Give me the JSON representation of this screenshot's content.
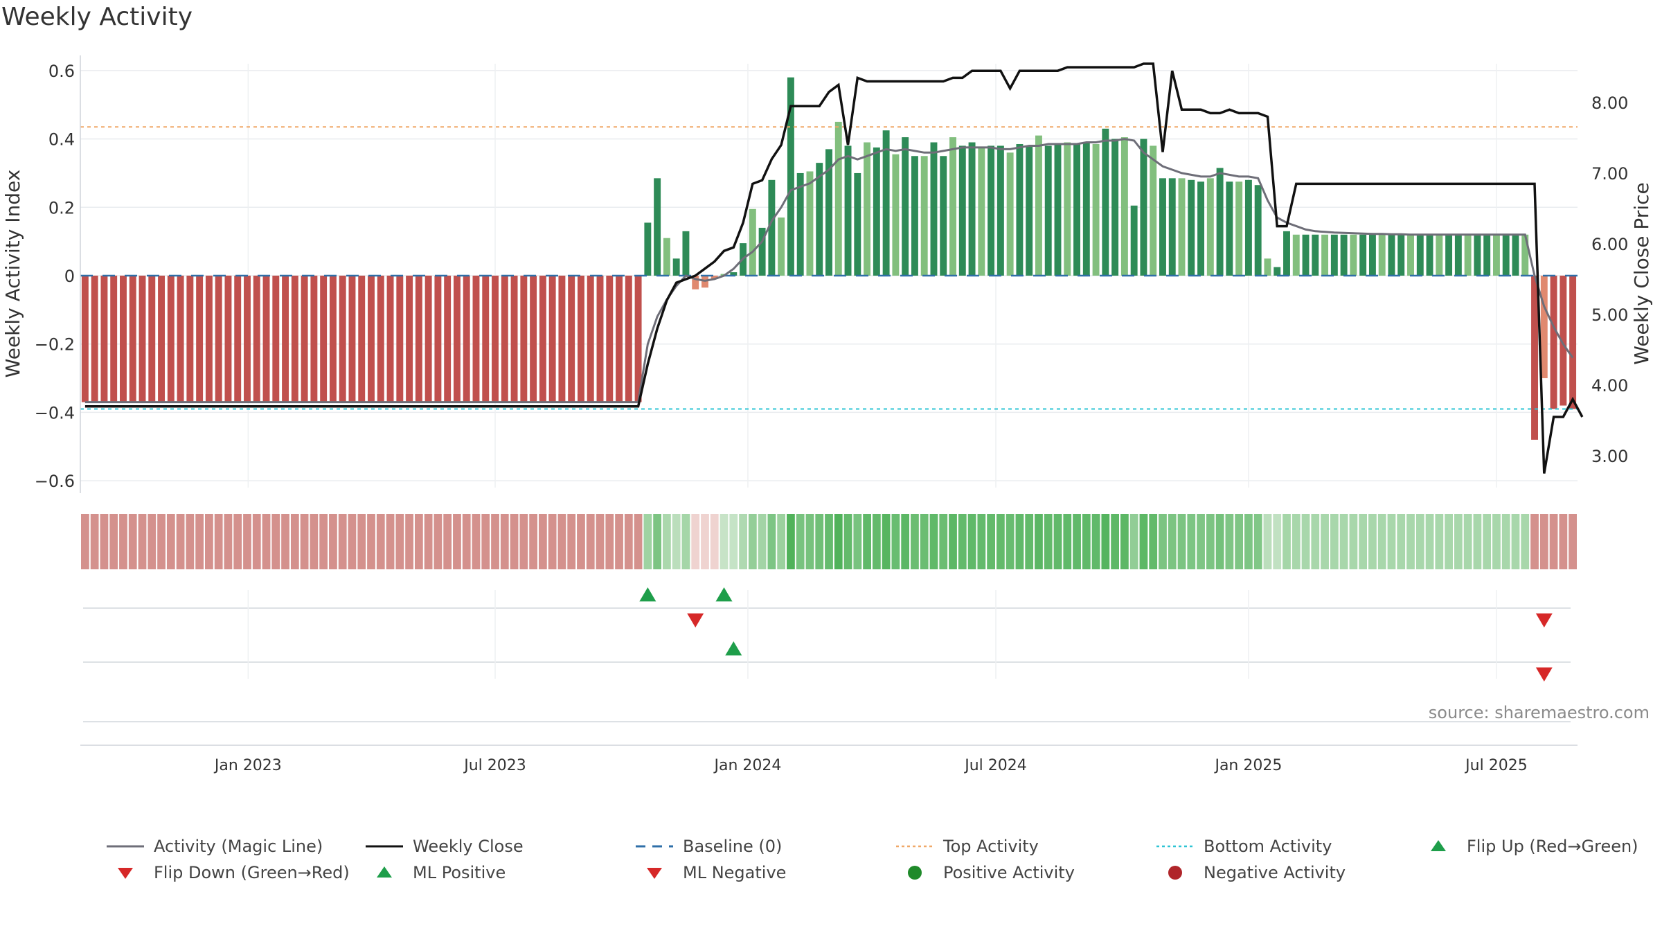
{
  "title": "Weekly Activity",
  "source": "source: sharemaestro.com",
  "colors": {
    "negative_bar": "#c0504d",
    "positive_dark": "#2e8b57",
    "positive_light": "#82bf7e",
    "negative_light": "#e0896f",
    "magic_line": "#6e6e78",
    "close_line": "#111111",
    "baseline": "#2f6fa8",
    "top_activity": "#f0a868",
    "bottom_activity": "#2ec4d4",
    "flip_up": "#1e9e4a",
    "flip_down": "#d62828"
  },
  "chart_data": {
    "type": "bar",
    "title": "Weekly Activity",
    "ylabel": "Weekly Activity Index",
    "y2label": "Weekly Close Price",
    "ylim": [
      -0.62,
      0.62
    ],
    "y2lim": [
      2.55,
      8.55
    ],
    "yticks": [
      -0.6,
      -0.4,
      -0.2,
      0,
      0.2,
      0.4,
      0.6
    ],
    "yticklabels": [
      "−0.6",
      "−0.4",
      "−0.2",
      "0",
      "0.2",
      "0.4",
      "0.6"
    ],
    "y2ticks": [
      3,
      4,
      5,
      6,
      7,
      8
    ],
    "y2ticklabels": [
      "3.00",
      "4.00",
      "5.00",
      "6.00",
      "7.00",
      "8.00"
    ],
    "xticklabels": [
      "Jan 2023",
      "Jul 2023",
      "Jan 2024",
      "Jul 2024",
      "Jan 2025",
      "Jul 2025"
    ],
    "xtick_weeks": [
      17.6,
      43.5,
      70,
      96,
      122.5,
      148.5
    ],
    "grid": true,
    "legend_position": "bottom",
    "series": [
      {
        "name": "Weekly Activity Index (bars)",
        "values": [
          -0.37,
          -0.37,
          -0.37,
          -0.37,
          -0.37,
          -0.37,
          -0.37,
          -0.37,
          -0.37,
          -0.37,
          -0.37,
          -0.37,
          -0.37,
          -0.37,
          -0.37,
          -0.37,
          -0.37,
          -0.37,
          -0.37,
          -0.37,
          -0.37,
          -0.37,
          -0.37,
          -0.37,
          -0.37,
          -0.37,
          -0.37,
          -0.37,
          -0.37,
          -0.37,
          -0.37,
          -0.37,
          -0.37,
          -0.37,
          -0.37,
          -0.37,
          -0.37,
          -0.37,
          -0.37,
          -0.37,
          -0.37,
          -0.37,
          -0.37,
          -0.37,
          -0.37,
          -0.37,
          -0.37,
          -0.37,
          -0.37,
          -0.37,
          -0.37,
          -0.37,
          -0.37,
          -0.37,
          -0.37,
          -0.37,
          -0.37,
          -0.37,
          -0.37,
          0.155,
          0.285,
          0.11,
          0.05,
          0.13,
          -0.04,
          -0.035,
          -0.01,
          0.005,
          0.01,
          0.095,
          0.195,
          0.14,
          0.28,
          0.17,
          0.58,
          0.3,
          0.305,
          0.33,
          0.37,
          0.45,
          0.38,
          0.3,
          0.39,
          0.375,
          0.425,
          0.355,
          0.405,
          0.35,
          0.35,
          0.39,
          0.35,
          0.405,
          0.38,
          0.39,
          0.375,
          0.38,
          0.38,
          0.36,
          0.385,
          0.38,
          0.41,
          0.38,
          0.385,
          0.39,
          0.385,
          0.39,
          0.385,
          0.43,
          0.4,
          0.405,
          0.205,
          0.4,
          0.38,
          0.285,
          0.285,
          0.285,
          0.28,
          0.275,
          0.285,
          0.315,
          0.275,
          0.275,
          0.28,
          0.265,
          0.05,
          0.025,
          0.13,
          0.12,
          0.12,
          0.12,
          0.12,
          0.12,
          0.12,
          0.12,
          0.12,
          0.12,
          0.12,
          0.12,
          0.12,
          0.12,
          0.12,
          0.12,
          0.12,
          0.12,
          0.12,
          0.12,
          0.12,
          0.12,
          0.12,
          0.12,
          0.12,
          0.12,
          -0.48,
          -0.3,
          -0.39,
          -0.38,
          -0.39
        ]
      },
      {
        "name": "Activity (Magic Line)",
        "values": [
          -0.37,
          -0.37,
          -0.37,
          -0.37,
          -0.37,
          -0.37,
          -0.37,
          -0.37,
          -0.37,
          -0.37,
          -0.37,
          -0.37,
          -0.37,
          -0.37,
          -0.37,
          -0.37,
          -0.37,
          -0.37,
          -0.37,
          -0.37,
          -0.37,
          -0.37,
          -0.37,
          -0.37,
          -0.37,
          -0.37,
          -0.37,
          -0.37,
          -0.37,
          -0.37,
          -0.37,
          -0.37,
          -0.37,
          -0.37,
          -0.37,
          -0.37,
          -0.37,
          -0.37,
          -0.37,
          -0.37,
          -0.37,
          -0.37,
          -0.37,
          -0.37,
          -0.37,
          -0.37,
          -0.37,
          -0.37,
          -0.37,
          -0.37,
          -0.37,
          -0.37,
          -0.37,
          -0.37,
          -0.37,
          -0.37,
          -0.37,
          -0.37,
          -0.37,
          -0.2,
          -0.12,
          -0.07,
          -0.03,
          0.0,
          -0.01,
          -0.015,
          -0.01,
          0.0,
          0.02,
          0.05,
          0.07,
          0.1,
          0.16,
          0.2,
          0.25,
          0.26,
          0.27,
          0.29,
          0.31,
          0.34,
          0.35,
          0.34,
          0.35,
          0.36,
          0.37,
          0.365,
          0.37,
          0.365,
          0.36,
          0.36,
          0.365,
          0.37,
          0.375,
          0.375,
          0.375,
          0.375,
          0.37,
          0.37,
          0.375,
          0.38,
          0.38,
          0.385,
          0.385,
          0.385,
          0.385,
          0.39,
          0.39,
          0.395,
          0.395,
          0.4,
          0.395,
          0.36,
          0.34,
          0.32,
          0.31,
          0.3,
          0.295,
          0.29,
          0.29,
          0.3,
          0.295,
          0.29,
          0.29,
          0.285,
          0.22,
          0.17,
          0.155,
          0.145,
          0.135,
          0.13,
          0.128,
          0.126,
          0.125,
          0.124,
          0.123,
          0.122,
          0.122,
          0.121,
          0.121,
          0.12,
          0.12,
          0.12,
          0.12,
          0.12,
          0.12,
          0.12,
          0.12,
          0.12,
          0.12,
          0.12,
          0.12,
          0.12,
          0.0,
          -0.09,
          -0.15,
          -0.2,
          -0.24
        ]
      },
      {
        "name": "Weekly Close",
        "values": [
          3.7,
          3.7,
          3.7,
          3.7,
          3.7,
          3.7,
          3.7,
          3.7,
          3.7,
          3.7,
          3.7,
          3.7,
          3.7,
          3.7,
          3.7,
          3.7,
          3.7,
          3.7,
          3.7,
          3.7,
          3.7,
          3.7,
          3.7,
          3.7,
          3.7,
          3.7,
          3.7,
          3.7,
          3.7,
          3.7,
          3.7,
          3.7,
          3.7,
          3.7,
          3.7,
          3.7,
          3.7,
          3.7,
          3.7,
          3.7,
          3.7,
          3.7,
          3.7,
          3.7,
          3.7,
          3.7,
          3.7,
          3.7,
          3.7,
          3.7,
          3.7,
          3.7,
          3.7,
          3.7,
          3.7,
          3.7,
          3.7,
          3.7,
          3.7,
          4.3,
          4.8,
          5.2,
          5.45,
          5.5,
          5.55,
          5.65,
          5.75,
          5.9,
          5.95,
          6.3,
          6.85,
          6.9,
          7.2,
          7.4,
          7.95,
          7.95,
          7.95,
          7.95,
          8.15,
          8.25,
          7.4,
          8.35,
          8.3,
          8.3,
          8.3,
          8.3,
          8.3,
          8.3,
          8.3,
          8.3,
          8.3,
          8.35,
          8.35,
          8.45,
          8.45,
          8.45,
          8.45,
          8.2,
          8.45,
          8.45,
          8.45,
          8.45,
          8.45,
          8.5,
          8.5,
          8.5,
          8.5,
          8.5,
          8.5,
          8.5,
          8.5,
          8.55,
          8.55,
          7.3,
          8.45,
          7.9,
          7.9,
          7.9,
          7.85,
          7.85,
          7.9,
          7.85,
          7.85,
          7.85,
          7.8,
          6.25,
          6.25,
          6.85,
          6.85,
          6.85,
          6.85,
          6.85,
          6.85,
          6.85,
          6.85,
          6.85,
          6.85,
          6.85,
          6.85,
          6.85,
          6.85,
          6.85,
          6.85,
          6.85,
          6.85,
          6.85,
          6.85,
          6.85,
          6.85,
          6.85,
          6.85,
          6.85,
          6.85,
          2.75,
          3.55,
          3.55,
          3.8,
          3.55
        ]
      },
      {
        "name": "Baseline (0)",
        "values": [
          0
        ]
      },
      {
        "name": "Top Activity",
        "values": [
          0.435
        ]
      },
      {
        "name": "Bottom Activity",
        "values": [
          -0.39
        ]
      },
      {
        "name": "Flip Up (Red→Green)",
        "x_weeks": [
          59,
          67
        ]
      },
      {
        "name": "Flip Down (Green→Red)",
        "x_weeks": [
          64,
          153
        ]
      },
      {
        "name": "ML Positive",
        "x_weeks": [
          68
        ]
      },
      {
        "name": "ML Negative",
        "x_weeks": [
          153
        ]
      }
    ]
  },
  "legend": [
    {
      "label": "Activity (Magic Line)",
      "symbol": "line-solid-gray"
    },
    {
      "label": "Weekly Close",
      "symbol": "line-solid-black"
    },
    {
      "label": "Baseline (0)",
      "symbol": "line-dashed-blue"
    },
    {
      "label": "Top Activity",
      "symbol": "line-dotted-orange"
    },
    {
      "label": "Bottom Activity",
      "symbol": "line-dotted-cyan"
    },
    {
      "label": "Flip Up (Red→Green)",
      "symbol": "triangle-up-green"
    },
    {
      "label": "Flip Down (Green→Red)",
      "symbol": "triangle-down-red"
    },
    {
      "label": "ML Positive",
      "symbol": "triangle-up-green"
    },
    {
      "label": "ML Negative",
      "symbol": "triangle-down-red"
    },
    {
      "label": "Positive Activity",
      "symbol": "circle-green"
    },
    {
      "label": "Negative Activity",
      "symbol": "circle-red"
    }
  ]
}
